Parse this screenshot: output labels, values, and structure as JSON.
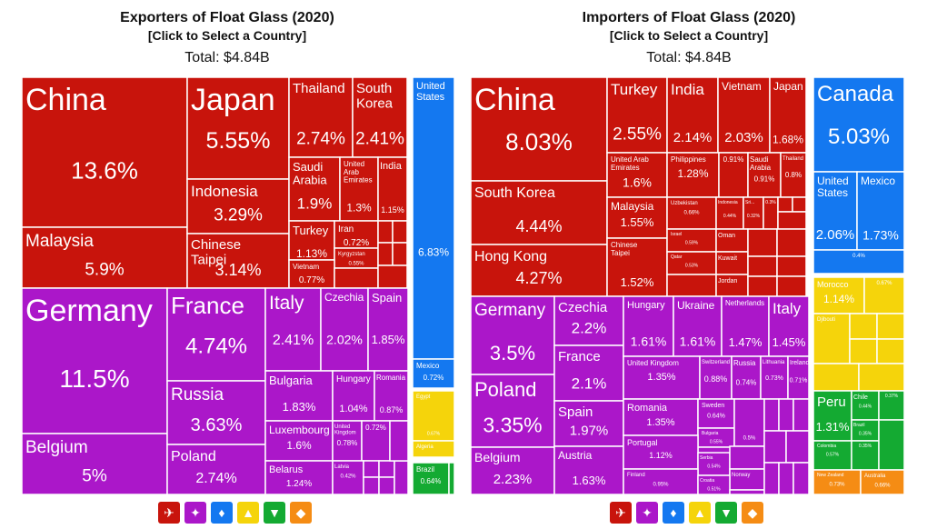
{
  "colors": {
    "Asia": "#c8140c",
    "Europe": "#ab17c9",
    "North America": "#1478f0",
    "Africa": "#f5d40b",
    "South America": "#14aa32",
    "Oceania": "#f58c14"
  },
  "charts": [
    {
      "title": "Exporters of Float Glass (2020)",
      "subtitle": "[Click to Select a Country]",
      "total": "Total: $4.84B"
    },
    {
      "title": "Importers of Float Glass (2020)",
      "subtitle": "[Click to Select a Country]",
      "total": "Total: $4.84B"
    }
  ],
  "legend_icons": [
    {
      "name": "asia-icon",
      "region": "Asia",
      "glyph": "✈"
    },
    {
      "name": "europe-icon",
      "region": "Europe",
      "glyph": "✦"
    },
    {
      "name": "north-america-icon",
      "region": "North America",
      "glyph": "♦"
    },
    {
      "name": "africa-icon",
      "region": "Africa",
      "glyph": "▲"
    },
    {
      "name": "south-america-icon",
      "region": "South America",
      "glyph": "▼"
    },
    {
      "name": "oceania-icon",
      "region": "Oceania",
      "glyph": "◆"
    }
  ],
  "chart_data": [
    {
      "type": "treemap",
      "title": "Exporters of Float Glass (2020)",
      "total": "$4.84B",
      "items": [
        {
          "name": "China",
          "share": "13.6%",
          "value": 13.6,
          "region": "Asia"
        },
        {
          "name": "Malaysia",
          "share": "5.9%",
          "value": 5.9,
          "region": "Asia"
        },
        {
          "name": "Japan",
          "share": "5.55%",
          "value": 5.55,
          "region": "Asia"
        },
        {
          "name": "Indonesia",
          "share": "3.29%",
          "value": 3.29,
          "region": "Asia"
        },
        {
          "name": "Chinese Taipei",
          "share": "3.14%",
          "value": 3.14,
          "region": "Asia"
        },
        {
          "name": "Thailand",
          "share": "2.74%",
          "value": 2.74,
          "region": "Asia"
        },
        {
          "name": "South Korea",
          "share": "2.41%",
          "value": 2.41,
          "region": "Asia"
        },
        {
          "name": "Saudi Arabia",
          "share": "1.9%",
          "value": 1.9,
          "region": "Asia"
        },
        {
          "name": "United Arab Emirates",
          "share": "1.3%",
          "value": 1.3,
          "region": "Asia"
        },
        {
          "name": "India",
          "share": "1.15%",
          "value": 1.15,
          "region": "Asia"
        },
        {
          "name": "Turkey",
          "share": "1.13%",
          "value": 1.13,
          "region": "Asia"
        },
        {
          "name": "Iran",
          "share": "0.72%",
          "value": 0.72,
          "region": "Asia"
        },
        {
          "name": "Kyrgyzstan",
          "share": "0.55%",
          "value": 0.55,
          "region": "Asia"
        },
        {
          "name": "Vietnam",
          "share": "0.77%",
          "value": 0.77,
          "region": "Asia"
        },
        {
          "name": "Germany",
          "share": "11.5%",
          "value": 11.5,
          "region": "Europe"
        },
        {
          "name": "Belgium",
          "share": "5%",
          "value": 5,
          "region": "Europe"
        },
        {
          "name": "France",
          "share": "4.74%",
          "value": 4.74,
          "region": "Europe"
        },
        {
          "name": "Russia",
          "share": "3.63%",
          "value": 3.63,
          "region": "Europe"
        },
        {
          "name": "Poland",
          "share": "2.74%",
          "value": 2.74,
          "region": "Europe"
        },
        {
          "name": "Italy",
          "share": "2.41%",
          "value": 2.41,
          "region": "Europe"
        },
        {
          "name": "Czechia",
          "share": "2.02%",
          "value": 2.02,
          "region": "Europe"
        },
        {
          "name": "Spain",
          "share": "1.85%",
          "value": 1.85,
          "region": "Europe"
        },
        {
          "name": "Bulgaria",
          "share": "1.83%",
          "value": 1.83,
          "region": "Europe"
        },
        {
          "name": "Hungary",
          "share": "1.04%",
          "value": 1.04,
          "region": "Europe"
        },
        {
          "name": "Romania",
          "share": "0.87%",
          "value": 0.87,
          "region": "Europe"
        },
        {
          "name": "Luxembourg",
          "share": "1.6%",
          "value": 1.6,
          "region": "Europe"
        },
        {
          "name": "United Kingdom",
          "share": "0.78%",
          "value": 0.78,
          "region": "Europe"
        },
        {
          "name": "",
          "share": "0.72%",
          "value": 0.72,
          "region": "Europe"
        },
        {
          "name": "Belarus",
          "share": "1.24%",
          "value": 1.24,
          "region": "Europe"
        },
        {
          "name": "Latvia",
          "share": "0.42%",
          "value": 0.42,
          "region": "Europe"
        },
        {
          "name": "United States",
          "share": "6.83%",
          "value": 6.83,
          "region": "North America"
        },
        {
          "name": "Mexico",
          "share": "0.72%",
          "value": 0.72,
          "region": "North America"
        },
        {
          "name": "Egypt",
          "share": "0.67%",
          "value": 0.67,
          "region": "Africa"
        },
        {
          "name": "Algeria",
          "share": "",
          "value": 0.3,
          "region": "Africa"
        },
        {
          "name": "Brazil",
          "share": "0.64%",
          "value": 0.64,
          "region": "South America"
        }
      ]
    },
    {
      "type": "treemap",
      "title": "Importers of Float Glass (2020)",
      "total": "$4.84B",
      "items": [
        {
          "name": "China",
          "share": "8.03%",
          "value": 8.03,
          "region": "Asia"
        },
        {
          "name": "South Korea",
          "share": "4.44%",
          "value": 4.44,
          "region": "Asia"
        },
        {
          "name": "Hong Kong",
          "share": "4.27%",
          "value": 4.27,
          "region": "Asia"
        },
        {
          "name": "Turkey",
          "share": "2.55%",
          "value": 2.55,
          "region": "Asia"
        },
        {
          "name": "India",
          "share": "2.14%",
          "value": 2.14,
          "region": "Asia"
        },
        {
          "name": "Vietnam",
          "share": "2.03%",
          "value": 2.03,
          "region": "Asia"
        },
        {
          "name": "Japan",
          "share": "1.68%",
          "value": 1.68,
          "region": "Asia"
        },
        {
          "name": "United Arab Emirates",
          "share": "1.6%",
          "value": 1.6,
          "region": "Asia"
        },
        {
          "name": "Philippines",
          "share": "1.28%",
          "value": 1.28,
          "region": "Asia"
        },
        {
          "name": "",
          "share": "0.91%",
          "value": 0.91,
          "region": "Asia"
        },
        {
          "name": "Saudi Arabia",
          "share": "0.91%",
          "value": 0.91,
          "region": "Asia"
        },
        {
          "name": "Thailand",
          "share": "0.8%",
          "value": 0.8,
          "region": "Asia"
        },
        {
          "name": "Malaysia",
          "share": "1.55%",
          "value": 1.55,
          "region": "Asia"
        },
        {
          "name": "Chinese Taipei",
          "share": "1.52%",
          "value": 1.52,
          "region": "Asia"
        },
        {
          "name": "Uzbekistan",
          "share": "0.66%",
          "value": 0.66,
          "region": "Asia"
        },
        {
          "name": "Indonesia",
          "share": "0.44%",
          "value": 0.44,
          "region": "Asia"
        },
        {
          "name": "Sri...",
          "share": "0.32%",
          "value": 0.32,
          "region": "Asia"
        },
        {
          "name": "",
          "share": "0.3%",
          "value": 0.3,
          "region": "Asia"
        },
        {
          "name": "Israel",
          "share": "0.59%",
          "value": 0.59,
          "region": "Asia"
        },
        {
          "name": "Qatar",
          "share": "0.53%",
          "value": 0.53,
          "region": "Asia"
        },
        {
          "name": "Oman",
          "share": "",
          "value": 0.5,
          "region": "Asia"
        },
        {
          "name": "Kuwait",
          "share": "",
          "value": 0.45,
          "region": "Asia"
        },
        {
          "name": "Jordan",
          "share": "",
          "value": 0.4,
          "region": "Asia"
        },
        {
          "name": "Germany",
          "share": "3.5%",
          "value": 3.5,
          "region": "Europe"
        },
        {
          "name": "Poland",
          "share": "3.35%",
          "value": 3.35,
          "region": "Europe"
        },
        {
          "name": "Belgium",
          "share": "2.23%",
          "value": 2.23,
          "region": "Europe"
        },
        {
          "name": "Czechia",
          "share": "2.2%",
          "value": 2.2,
          "region": "Europe"
        },
        {
          "name": "France",
          "share": "2.1%",
          "value": 2.1,
          "region": "Europe"
        },
        {
          "name": "Spain",
          "share": "1.97%",
          "value": 1.97,
          "region": "Europe"
        },
        {
          "name": "Austria",
          "share": "1.63%",
          "value": 1.63,
          "region": "Europe"
        },
        {
          "name": "Hungary",
          "share": "1.61%",
          "value": 1.61,
          "region": "Europe"
        },
        {
          "name": "Ukraine",
          "share": "1.61%",
          "value": 1.61,
          "region": "Europe"
        },
        {
          "name": "Netherlands",
          "share": "1.47%",
          "value": 1.47,
          "region": "Europe"
        },
        {
          "name": "Italy",
          "share": "1.45%",
          "value": 1.45,
          "region": "Europe"
        },
        {
          "name": "United Kingdom",
          "share": "1.35%",
          "value": 1.35,
          "region": "Europe"
        },
        {
          "name": "Switzerland",
          "share": "0.88%",
          "value": 0.88,
          "region": "Europe"
        },
        {
          "name": "Russia",
          "share": "0.74%",
          "value": 0.74,
          "region": "Europe"
        },
        {
          "name": "Lithuania",
          "share": "0.73%",
          "value": 0.73,
          "region": "Europe"
        },
        {
          "name": "Ireland",
          "share": "0.71%",
          "value": 0.71,
          "region": "Europe"
        },
        {
          "name": "Romania",
          "share": "1.35%",
          "value": 1.35,
          "region": "Europe"
        },
        {
          "name": "Sweden",
          "share": "0.64%",
          "value": 0.64,
          "region": "Europe"
        },
        {
          "name": "Bulgaria",
          "share": "0.55%",
          "value": 0.55,
          "region": "Europe"
        },
        {
          "name": "",
          "share": "0.5%",
          "value": 0.5,
          "region": "Europe"
        },
        {
          "name": "Portugal",
          "share": "1.12%",
          "value": 1.12,
          "region": "Europe"
        },
        {
          "name": "Serbia",
          "share": "0.54%",
          "value": 0.54,
          "region": "Europe"
        },
        {
          "name": "Norway",
          "share": "",
          "value": 0.5,
          "region": "Europe"
        },
        {
          "name": "Finland",
          "share": "0.95%",
          "value": 0.95,
          "region": "Europe"
        },
        {
          "name": "Croatia",
          "share": "0.51%",
          "value": 0.51,
          "region": "Europe"
        },
        {
          "name": "Slovenia",
          "share": "",
          "value": 0.45,
          "region": "Europe"
        },
        {
          "name": "Canada",
          "share": "5.03%",
          "value": 5.03,
          "region": "North America"
        },
        {
          "name": "United States",
          "share": "2.06%",
          "value": 2.06,
          "region": "North America"
        },
        {
          "name": "Mexico",
          "share": "1.73%",
          "value": 1.73,
          "region": "North America"
        },
        {
          "name": "",
          "share": "0.4%",
          "value": 0.4,
          "region": "North America"
        },
        {
          "name": "Morocco",
          "share": "1.14%",
          "value": 1.14,
          "region": "Africa"
        },
        {
          "name": "",
          "share": "0.67%",
          "value": 0.67,
          "region": "Africa"
        },
        {
          "name": "Djibouti",
          "share": "",
          "value": 0.4,
          "region": "Africa"
        },
        {
          "name": "Peru",
          "share": "1.31%",
          "value": 1.31,
          "region": "South America"
        },
        {
          "name": "Chile",
          "share": "0.44%",
          "value": 0.44,
          "region": "South America"
        },
        {
          "name": "",
          "share": "0.37%",
          "value": 0.37,
          "region": "South America"
        },
        {
          "name": "Brazil",
          "share": "0.35%",
          "value": 0.35,
          "region": "South America"
        },
        {
          "name": "Colombia",
          "share": "0.57%",
          "value": 0.57,
          "region": "South America"
        },
        {
          "name": "",
          "share": "0.35%",
          "value": 0.35,
          "region": "South America"
        },
        {
          "name": "New Zealand",
          "share": "0.73%",
          "value": 0.73,
          "region": "Oceania"
        },
        {
          "name": "Australia",
          "share": "0.66%",
          "value": 0.66,
          "region": "Oceania"
        }
      ]
    }
  ]
}
